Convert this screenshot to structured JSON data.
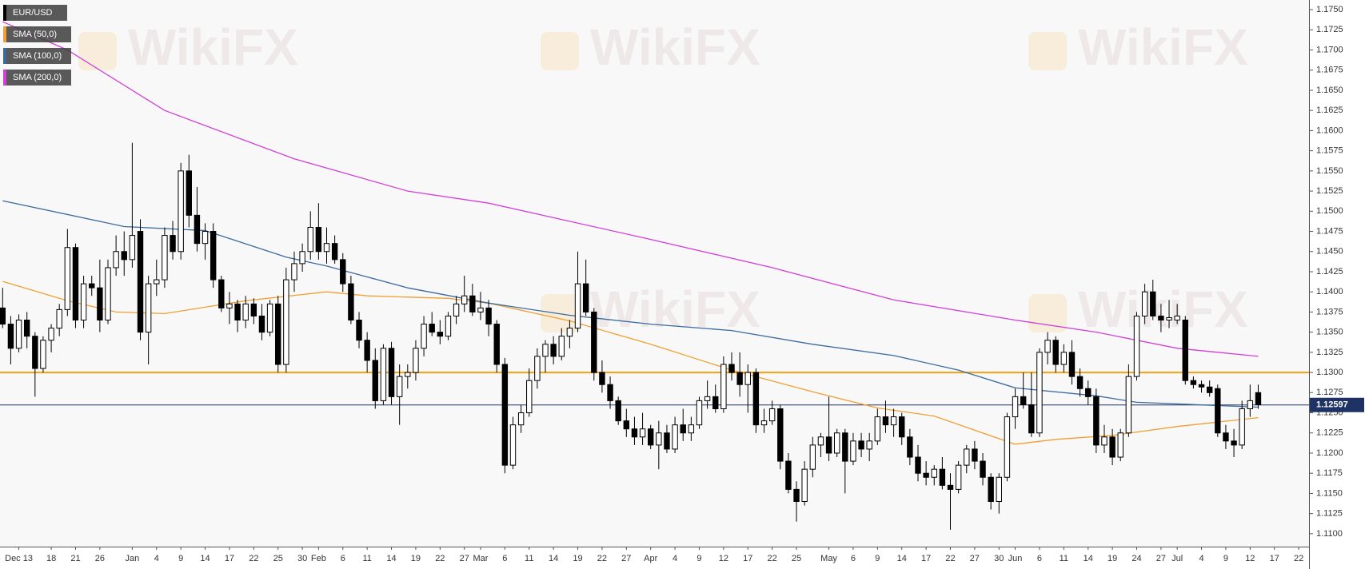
{
  "chart_data": {
    "type": "candlestick",
    "watermark": "WikiFX",
    "categories": [
      null,
      null,
      "Dec 13",
      null,
      null,
      null,
      "18",
      null,
      null,
      "21",
      null,
      null,
      "26",
      null,
      null,
      null,
      "Jan",
      null,
      null,
      "4",
      null,
      null,
      "9",
      null,
      null,
      "14",
      null,
      null,
      "17",
      null,
      null,
      "22",
      null,
      null,
      "25",
      null,
      null,
      "30",
      null,
      "Feb",
      null,
      null,
      "6",
      null,
      null,
      "11",
      null,
      null,
      "14",
      null,
      null,
      "19",
      null,
      null,
      "22",
      null,
      null,
      "27",
      null,
      "Mar",
      null,
      null,
      "6",
      null,
      null,
      "11",
      null,
      null,
      "14",
      null,
      null,
      "19",
      null,
      null,
      "22",
      null,
      null,
      "27",
      null,
      null,
      "Apr",
      null,
      null,
      "4",
      null,
      null,
      "9",
      null,
      null,
      "12",
      null,
      null,
      "17",
      null,
      null,
      "22",
      null,
      null,
      "25",
      null,
      null,
      null,
      "May",
      null,
      null,
      "6",
      null,
      null,
      "9",
      null,
      null,
      "14",
      null,
      null,
      "17",
      null,
      null,
      "22",
      null,
      null,
      "27",
      null,
      null,
      "30",
      null,
      "Jun",
      null,
      null,
      "6",
      null,
      null,
      "11",
      null,
      null,
      "14",
      null,
      null,
      "19",
      null,
      null,
      "24",
      null,
      null,
      "27",
      null,
      "Jul",
      null,
      null,
      "4",
      null,
      null,
      "9",
      null,
      null,
      "12",
      null,
      null,
      "17",
      null,
      null,
      "22"
    ],
    "series": [
      {
        "name": "EUR/USD",
        "color": "#000000",
        "up_color": "#ffffff",
        "down_color": "#000000",
        "open": [
          1.138,
          1.136,
          1.133,
          1.1365,
          1.1345,
          1.1305,
          1.134,
          1.1355,
          1.1378,
          1.1455,
          1.1365,
          1.141,
          1.1405,
          1.1365,
          1.143,
          1.145,
          1.144,
          1.1475,
          1.135,
          1.141,
          1.1415,
          1.147,
          1.145,
          1.155,
          1.1495,
          1.146,
          1.1475,
          1.1415,
          1.138,
          1.1385,
          1.1365,
          1.1385,
          1.137,
          1.135,
          1.1385,
          1.131,
          1.1415,
          1.1435,
          1.145,
          1.148,
          1.145,
          1.146,
          1.144,
          1.141,
          1.1365,
          1.134,
          1.1315,
          1.1265,
          1.133,
          1.127,
          1.1295,
          1.13,
          1.133,
          1.136,
          1.135,
          1.1345,
          1.137,
          1.1385,
          1.1395,
          1.1375,
          1.138,
          1.136,
          1.131,
          1.1185,
          1.1235,
          1.125,
          1.129,
          1.132,
          1.1335,
          1.132,
          1.1345,
          1.1355,
          1.141,
          1.1375,
          1.13,
          1.1285,
          1.1265,
          1.124,
          1.123,
          1.122,
          1.123,
          1.121,
          1.1225,
          1.1205,
          1.1235,
          1.1225,
          1.1235,
          1.1265,
          1.127,
          1.1255,
          1.131,
          1.13,
          1.1285,
          1.13,
          1.1235,
          1.124,
          1.1255,
          1.119,
          1.1155,
          1.114,
          1.118,
          1.121,
          1.122,
          1.12,
          1.1225,
          1.119,
          1.1215,
          1.1205,
          1.1215,
          1.1245,
          1.1235,
          1.1245,
          1.122,
          1.1195,
          1.1175,
          1.117,
          1.118,
          1.116,
          1.1155,
          1.1185,
          1.1205,
          1.119,
          1.117,
          1.114,
          1.117,
          1.1245,
          1.127,
          1.126,
          1.1225,
          1.1325,
          1.134,
          1.131,
          1.1325,
          1.1295,
          1.128,
          1.127,
          1.121,
          1.122,
          1.1195,
          1.1225,
          1.1295,
          1.137,
          1.14,
          1.137,
          1.1365,
          1.1365,
          1.1365,
          1.129,
          1.1285,
          1.1282,
          1.128,
          1.1225,
          1.1215,
          1.121,
          1.1255,
          1.1275,
          null,
          null,
          null,
          null,
          null
        ],
        "high": [
          1.1405,
          1.137,
          1.1372,
          1.1375,
          1.135,
          1.1345,
          1.136,
          1.1385,
          1.1478,
          1.146,
          1.142,
          1.142,
          1.144,
          1.144,
          1.147,
          1.1475,
          1.1585,
          1.149,
          1.142,
          1.144,
          1.148,
          1.1488,
          1.156,
          1.157,
          1.153,
          1.1485,
          1.1485,
          1.142,
          1.14,
          1.139,
          1.1395,
          1.1392,
          1.1385,
          1.139,
          1.1395,
          1.143,
          1.145,
          1.146,
          1.15,
          1.151,
          1.148,
          1.147,
          1.1448,
          1.142,
          1.1375,
          1.135,
          1.133,
          1.1335,
          1.1338,
          1.131,
          1.131,
          1.134,
          1.137,
          1.1375,
          1.1365,
          1.1375,
          1.1395,
          1.142,
          1.141,
          1.14,
          1.139,
          1.1365,
          1.1318,
          1.1245,
          1.126,
          1.1305,
          1.133,
          1.134,
          1.1345,
          1.1355,
          1.1365,
          1.145,
          1.144,
          1.138,
          1.1315,
          1.1295,
          1.127,
          1.1255,
          1.1245,
          1.125,
          1.1235,
          1.124,
          1.1235,
          1.1245,
          1.1255,
          1.1245,
          1.127,
          1.129,
          1.1285,
          1.132,
          1.1325,
          1.1325,
          1.131,
          1.1305,
          1.1255,
          1.1265,
          1.126,
          1.12,
          1.1165,
          1.119,
          1.122,
          1.1225,
          1.127,
          1.123,
          1.123,
          1.1225,
          1.1225,
          1.1225,
          1.1255,
          1.1265,
          1.1255,
          1.125,
          1.123,
          1.121,
          1.119,
          1.1185,
          1.1195,
          1.1175,
          1.119,
          1.121,
          1.1215,
          1.12,
          1.1175,
          1.1175,
          1.125,
          1.128,
          1.13,
          1.13,
          1.133,
          1.135,
          1.1345,
          1.1335,
          1.134,
          1.1305,
          1.129,
          1.128,
          1.1235,
          1.123,
          1.123,
          1.131,
          1.1375,
          1.141,
          1.1415,
          1.1385,
          1.139,
          1.1385,
          1.137,
          1.1295,
          1.129,
          1.129,
          1.1285,
          1.1235,
          1.123,
          1.1265,
          1.1285,
          1.1285,
          null,
          null,
          null,
          null,
          null
        ],
        "low": [
          1.1355,
          1.131,
          1.1325,
          1.133,
          1.127,
          1.13,
          1.1325,
          1.1345,
          1.137,
          1.1355,
          1.1355,
          1.1395,
          1.135,
          1.136,
          1.142,
          1.142,
          1.143,
          1.134,
          1.131,
          1.1395,
          1.1405,
          1.144,
          1.144,
          1.148,
          1.145,
          1.144,
          1.1405,
          1.1375,
          1.136,
          1.135,
          1.1355,
          1.136,
          1.134,
          1.1345,
          1.13,
          1.13,
          1.14,
          1.1425,
          1.144,
          1.144,
          1.1435,
          1.1435,
          1.14,
          1.136,
          1.133,
          1.13,
          1.1255,
          1.126,
          1.126,
          1.1235,
          1.128,
          1.129,
          1.132,
          1.1345,
          1.1335,
          1.134,
          1.136,
          1.1375,
          1.137,
          1.1365,
          1.1345,
          1.13,
          1.1175,
          1.118,
          1.1225,
          1.1245,
          1.128,
          1.13,
          1.131,
          1.1315,
          1.133,
          1.135,
          1.137,
          1.129,
          1.1275,
          1.1255,
          1.1235,
          1.122,
          1.121,
          1.121,
          1.1205,
          1.118,
          1.12,
          1.12,
          1.1215,
          1.1215,
          1.123,
          1.1255,
          1.125,
          1.125,
          1.129,
          1.127,
          1.125,
          1.1225,
          1.1225,
          1.1235,
          1.118,
          1.115,
          1.1115,
          1.1135,
          1.117,
          1.1195,
          1.119,
          1.1195,
          1.115,
          1.1185,
          1.1195,
          1.119,
          1.121,
          1.1225,
          1.122,
          1.121,
          1.1185,
          1.1165,
          1.116,
          1.116,
          1.1155,
          1.1105,
          1.115,
          1.1175,
          1.118,
          1.116,
          1.113,
          1.1125,
          1.1165,
          1.123,
          1.1255,
          1.122,
          1.122,
          1.131,
          1.13,
          1.13,
          1.1285,
          1.127,
          1.126,
          1.12,
          1.12,
          1.1185,
          1.119,
          1.122,
          1.129,
          1.136,
          1.1365,
          1.135,
          1.1355,
          1.136,
          1.1285,
          1.128,
          1.1275,
          1.127,
          1.122,
          1.1205,
          1.1195,
          1.1205,
          1.1245,
          1.1255,
          null,
          null,
          null,
          null,
          null
        ],
        "close": [
          1.136,
          1.133,
          1.1365,
          1.1345,
          1.1305,
          1.134,
          1.1355,
          1.1378,
          1.1455,
          1.1365,
          1.141,
          1.1405,
          1.1365,
          1.143,
          1.145,
          1.144,
          1.147,
          1.135,
          1.141,
          1.1415,
          1.147,
          1.145,
          1.155,
          1.1495,
          1.146,
          1.1475,
          1.1415,
          1.138,
          1.1385,
          1.1365,
          1.1385,
          1.137,
          1.135,
          1.1385,
          1.131,
          1.1415,
          1.1435,
          1.145,
          1.148,
          1.145,
          1.146,
          1.144,
          1.141,
          1.1365,
          1.134,
          1.1315,
          1.1265,
          1.133,
          1.127,
          1.1295,
          1.13,
          1.133,
          1.136,
          1.135,
          1.1345,
          1.137,
          1.1385,
          1.1395,
          1.1375,
          1.138,
          1.136,
          1.131,
          1.1185,
          1.1235,
          1.125,
          1.129,
          1.132,
          1.1335,
          1.132,
          1.1345,
          1.1355,
          1.141,
          1.1375,
          1.13,
          1.1285,
          1.1265,
          1.124,
          1.123,
          1.122,
          1.123,
          1.121,
          1.1225,
          1.1205,
          1.1235,
          1.1225,
          1.1235,
          1.1265,
          1.127,
          1.1255,
          1.131,
          1.13,
          1.1285,
          1.13,
          1.1235,
          1.124,
          1.1255,
          1.119,
          1.1155,
          1.114,
          1.118,
          1.121,
          1.122,
          1.12,
          1.1225,
          1.119,
          1.1215,
          1.1205,
          1.1215,
          1.1245,
          1.1235,
          1.1245,
          1.122,
          1.1195,
          1.1175,
          1.117,
          1.118,
          1.116,
          1.1155,
          1.1185,
          1.1205,
          1.119,
          1.117,
          1.114,
          1.117,
          1.1245,
          1.127,
          1.126,
          1.1225,
          1.1325,
          1.134,
          1.131,
          1.1325,
          1.1295,
          1.128,
          1.127,
          1.121,
          1.122,
          1.1195,
          1.1225,
          1.1295,
          1.137,
          1.14,
          1.137,
          1.1365,
          1.1368,
          1.137,
          1.129,
          1.1285,
          1.1282,
          1.1275,
          1.1225,
          1.1215,
          1.121,
          1.1255,
          1.1265,
          1.126,
          null,
          null,
          null,
          null,
          null
        ]
      },
      {
        "name": "SMA (50,0)",
        "type": "line",
        "color": "#f0a030",
        "x": [
          0,
          8,
          14,
          20,
          30,
          40,
          45,
          55,
          60,
          70,
          80,
          90,
          100,
          108,
          115,
          125,
          130,
          137,
          145,
          155
        ],
        "values": [
          1.1413,
          1.1389,
          1.1375,
          1.1373,
          1.1389,
          1.14,
          1.1395,
          1.1392,
          1.1386,
          1.1364,
          1.1335,
          1.1303,
          1.1276,
          1.1256,
          1.1246,
          1.1211,
          1.1217,
          1.1222,
          1.1233,
          1.1244
        ]
      },
      {
        "name": "SMA (100,0)",
        "type": "line",
        "color": "#3a6a9e",
        "x": [
          0,
          15,
          25,
          35,
          40,
          50,
          60,
          70,
          80,
          90,
          100,
          110,
          118,
          125,
          135,
          140,
          145,
          155
        ],
        "values": [
          1.1513,
          1.1481,
          1.1476,
          1.1443,
          1.1432,
          1.1405,
          1.1386,
          1.1371,
          1.136,
          1.1352,
          1.1335,
          1.1321,
          1.1303,
          1.1281,
          1.1271,
          1.1263,
          1.1261,
          1.1257
        ]
      },
      {
        "name": "SMA (200,0)",
        "type": "line",
        "color": "#d23fd8",
        "x": [
          0,
          8,
          20,
          36,
          50,
          60,
          80,
          95,
          110,
          125,
          135,
          145,
          155
        ],
        "values": [
          1.1735,
          1.17,
          1.1625,
          1.1565,
          1.1525,
          1.151,
          1.1465,
          1.143,
          1.139,
          1.1365,
          1.135,
          1.133,
          1.132
        ]
      }
    ],
    "levels": [
      {
        "value": 1.13,
        "color": "#f5a010"
      }
    ],
    "last_price": 1.12597,
    "last_price_color": "#1e3264",
    "ylim": [
      1.1084,
      1.1762
    ],
    "yticks": [
      {
        "value": 1.11,
        "label": "1.1100"
      },
      {
        "value": 1.1125,
        "label": "1.1125"
      },
      {
        "value": 1.115,
        "label": "1.1150"
      },
      {
        "value": 1.1175,
        "label": "1.1175"
      },
      {
        "value": 1.12,
        "label": "1.1200"
      },
      {
        "value": 1.1225,
        "label": "1.1225"
      },
      {
        "value": 1.125,
        "label": "1.1250"
      },
      {
        "value": 1.1275,
        "label": "1.1275"
      },
      {
        "value": 1.13,
        "label": "1.1300"
      },
      {
        "value": 1.1325,
        "label": "1.1325"
      },
      {
        "value": 1.135,
        "label": "1.1350"
      },
      {
        "value": 1.1375,
        "label": "1.1375"
      },
      {
        "value": 1.14,
        "label": "1.1400"
      },
      {
        "value": 1.1425,
        "label": "1.1425"
      },
      {
        "value": 1.145,
        "label": "1.1450"
      },
      {
        "value": 1.1475,
        "label": "1.1475"
      },
      {
        "value": 1.15,
        "label": "1.1500"
      },
      {
        "value": 1.1525,
        "label": "1.1525"
      },
      {
        "value": 1.155,
        "label": "1.1550"
      },
      {
        "value": 1.1575,
        "label": "1.1575"
      },
      {
        "value": 1.16,
        "label": "1.1600"
      },
      {
        "value": 1.1625,
        "label": "1.1625"
      },
      {
        "value": 1.165,
        "label": "1.1650"
      },
      {
        "value": 1.1675,
        "label": "1.1675"
      },
      {
        "value": 1.17,
        "label": "1.1700"
      },
      {
        "value": 1.1725,
        "label": "1.1725"
      },
      {
        "value": 1.175,
        "label": "1.1750"
      }
    ],
    "grid": false
  }
}
